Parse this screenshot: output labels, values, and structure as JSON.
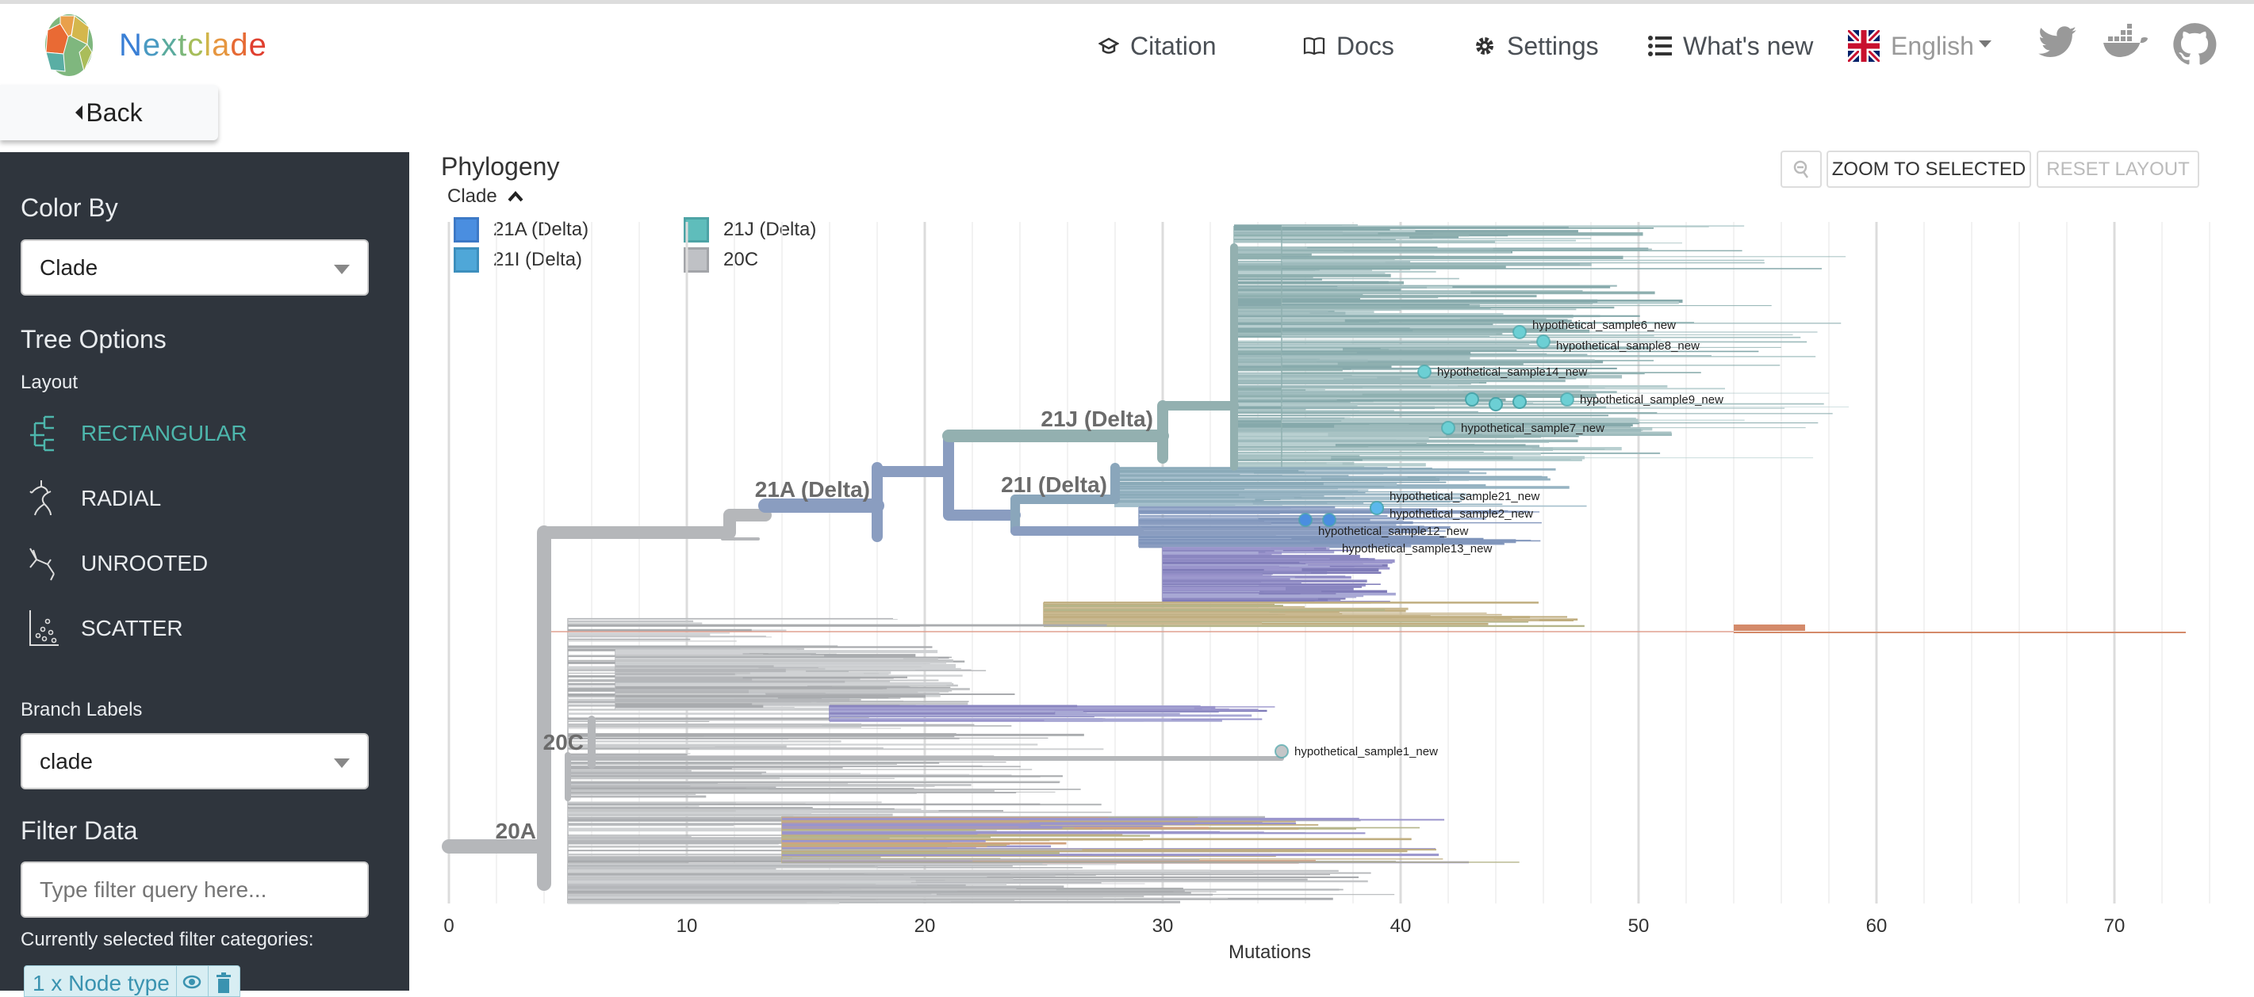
{
  "header": {
    "brand": "Nextclade",
    "nav": [
      {
        "label": "Citation",
        "icon": "graduation-cap-icon"
      },
      {
        "label": "Docs",
        "icon": "book-icon"
      },
      {
        "label": "Settings",
        "icon": "gear-icon"
      },
      {
        "label": "What's new",
        "icon": "list-icon"
      }
    ],
    "language": "English",
    "social": [
      "twitter-icon",
      "docker-icon",
      "github-icon"
    ]
  },
  "back_label": "Back",
  "sidebar": {
    "color_by_title": "Color By",
    "color_by_value": "Clade",
    "tree_options_title": "Tree Options",
    "layout_label": "Layout",
    "layouts": [
      "RECTANGULAR",
      "RADIAL",
      "UNROOTED",
      "SCATTER"
    ],
    "active_layout": "RECTANGULAR",
    "branch_labels_title": "Branch Labels",
    "branch_labels_value": "clade",
    "filter_title": "Filter Data",
    "filter_placeholder": "Type filter query here...",
    "current_filters_label": "Currently selected filter categories:",
    "filter_chip": "1 x Node type"
  },
  "main": {
    "title": "Phylogeny",
    "legend_title": "Clade",
    "legend": [
      {
        "label": "21A (Delta)",
        "color": "#4a8ee0"
      },
      {
        "label": "21I (Delta)",
        "color": "#4fa7d8"
      },
      {
        "label": "21J (Delta)",
        "color": "#5fbdbb"
      },
      {
        "label": "20C",
        "color": "#bfc1c5"
      }
    ],
    "zoom_to_selected": "ZOOM TO SELECTED",
    "reset_layout": "RESET LAYOUT",
    "axis": {
      "ticks": [
        0,
        10,
        20,
        30,
        40,
        50,
        60,
        70
      ],
      "xlabel": "Mutations"
    },
    "clade_labels": {
      "c21J": "21J (Delta)",
      "c21A": "21A (Delta)",
      "c21I": "21I (Delta)",
      "c20C": "20C",
      "c20A": "20A"
    },
    "samples": [
      {
        "name": "hypothetical_sample6_new",
        "mutations": 45,
        "clade": "21J (Delta)"
      },
      {
        "name": "hypothetical_sample8_new",
        "mutations": 46,
        "clade": "21J (Delta)"
      },
      {
        "name": "hypothetical_sample14_new",
        "mutations": 41,
        "clade": "21J (Delta)"
      },
      {
        "name": "hypothetical_sample9_new",
        "mutations": 47,
        "clade": "21J (Delta)"
      },
      {
        "name": "hypothetical_sample7_new",
        "mutations": 42,
        "clade": "21J (Delta)"
      },
      {
        "name": "hypothetical_sample2_new",
        "mutations": 39,
        "clade": "21I (Delta)"
      },
      {
        "name": "hypothetical_sample21_new",
        "mutations": 39,
        "clade": "21I (Delta)"
      },
      {
        "name": "hypothetical_sample12_new",
        "mutations": 36,
        "clade": "21A (Delta)"
      },
      {
        "name": "hypothetical_sample13_new",
        "mutations": 37,
        "clade": "21A (Delta)"
      },
      {
        "name": "hypothetical_sample1_new",
        "mutations": 35,
        "clade": "20C"
      }
    ]
  }
}
